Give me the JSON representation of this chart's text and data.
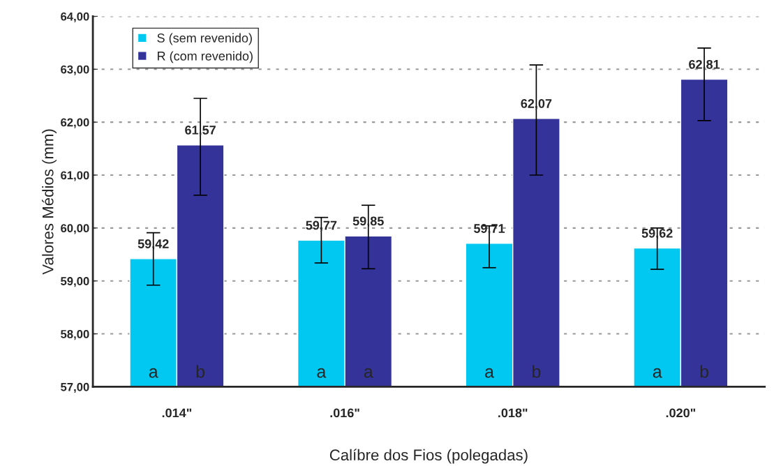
{
  "chart_data": {
    "type": "bar",
    "xlabel": "Calíbre dos Fios (polegadas)",
    "ylabel": "Valores Médios (mm)",
    "categories": [
      ".014\"",
      ".016\"",
      ".018\"",
      ".020\""
    ],
    "series": [
      {
        "name": "S (sem revenido)",
        "color": "#00c8f0",
        "values": [
          59.42,
          59.77,
          59.71,
          59.62
        ],
        "value_labels": [
          "59,42",
          "59,77",
          "59,71",
          "59,62"
        ],
        "errors": [
          [
            58.92,
            59.91
          ],
          [
            59.34,
            60.2
          ],
          [
            59.25,
            60.04
          ],
          [
            59.22,
            60.0
          ]
        ]
      },
      {
        "name": "R (com revenido)",
        "color": "#333399",
        "values": [
          61.57,
          59.85,
          62.07,
          62.81
        ],
        "value_labels": [
          "61,57",
          "59,85",
          "62,07",
          "62,81"
        ],
        "errors": [
          [
            60.62,
            62.45
          ],
          [
            59.23,
            60.43
          ],
          [
            61.0,
            63.08
          ],
          [
            62.03,
            63.4
          ]
        ]
      }
    ],
    "ylim": [
      57,
      64
    ],
    "yticks": [
      {
        "value": 57,
        "label": "57,00"
      },
      {
        "value": 58,
        "label": "58,00"
      },
      {
        "value": 59,
        "label": "59,00"
      },
      {
        "value": 60,
        "label": "60,00"
      },
      {
        "value": 61,
        "label": "61,00"
      },
      {
        "value": 62,
        "label": "62,00"
      },
      {
        "value": 63,
        "label": "63,00"
      },
      {
        "value": 64,
        "label": "64,00"
      }
    ],
    "annotations": [
      "a",
      "a",
      "a",
      "a",
      "b",
      "a",
      "b",
      "b"
    ],
    "grid": "y",
    "legend": "top left"
  }
}
